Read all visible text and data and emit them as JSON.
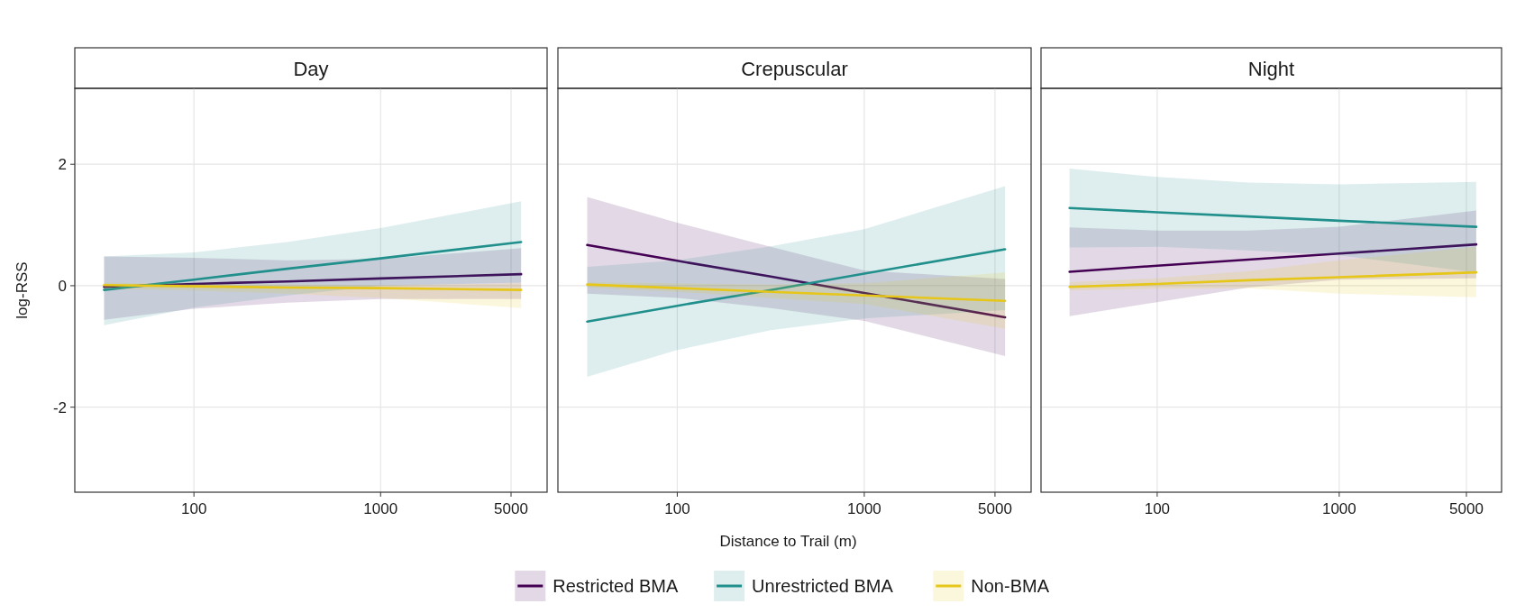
{
  "chart_data": [
    {
      "type": "line",
      "title": "Day",
      "ylabel": "log-RSS",
      "log": "x",
      "grid": true,
      "xlim": [
        23,
        7800
      ],
      "xticks": [
        100,
        1000,
        5000
      ],
      "ylim": [
        -3.4,
        3.25
      ],
      "yticks": [
        -2,
        0,
        2
      ],
      "series": [
        {
          "color": "#440154",
          "x": [
            33,
            100,
            316,
            1000,
            5660
          ],
          "values": [
            -0.02,
            0.03,
            0.07,
            0.12,
            0.19
          ],
          "lower": [
            -0.56,
            -0.38,
            -0.28,
            -0.22,
            -0.22
          ],
          "upper": [
            0.48,
            0.46,
            0.42,
            0.44,
            0.62
          ]
        },
        {
          "color": "#21908c",
          "x": [
            33,
            100,
            316,
            1000,
            5660
          ],
          "values": [
            -0.07,
            0.1,
            0.28,
            0.45,
            0.72
          ],
          "lower": [
            -0.65,
            -0.36,
            -0.16,
            0.0,
            0.05
          ],
          "upper": [
            0.48,
            0.55,
            0.72,
            0.95,
            1.39
          ]
        },
        {
          "color": "#e5c619",
          "x": [
            33,
            100,
            316,
            1000,
            5660
          ],
          "values": [
            0.01,
            -0.01,
            -0.03,
            -0.04,
            -0.07
          ],
          "lower": [
            -0.05,
            -0.08,
            -0.13,
            -0.2,
            -0.37
          ],
          "upper": [
            0.05,
            0.03,
            0.02,
            0.01,
            0.04
          ]
        }
      ]
    },
    {
      "type": "line",
      "title": "Crepuscular",
      "xlabel": "Distance to Trail (m)",
      "log": "x",
      "grid": true,
      "legend": "bottom",
      "tick_labels": "x",
      "xlim": [
        23,
        7800
      ],
      "xticks": [
        100,
        1000,
        5000
      ],
      "ylim": [
        -3.4,
        3.25
      ],
      "yticks": [
        -2,
        0,
        2
      ],
      "series": [
        {
          "name": "Restricted BMA",
          "color": "#440154",
          "x": [
            33,
            100,
            316,
            1000,
            5660
          ],
          "values": [
            0.67,
            0.41,
            0.15,
            -0.12,
            -0.52
          ],
          "lower": [
            -0.13,
            -0.2,
            -0.37,
            -0.58,
            -1.16
          ],
          "upper": [
            1.46,
            1.04,
            0.64,
            0.25,
            0.11
          ]
        },
        {
          "name": "Unrestricted BMA",
          "color": "#21908c",
          "x": [
            33,
            100,
            316,
            1000,
            5660
          ],
          "values": [
            -0.59,
            -0.33,
            -0.07,
            0.2,
            0.6
          ],
          "lower": [
            -1.5,
            -1.06,
            -0.73,
            -0.54,
            -0.4
          ],
          "upper": [
            0.31,
            0.42,
            0.65,
            0.93,
            1.64
          ]
        },
        {
          "name": "Non-BMA",
          "color": "#e5c619",
          "x": [
            33,
            100,
            316,
            1000,
            5660
          ],
          "values": [
            0.02,
            -0.04,
            -0.1,
            -0.16,
            -0.25
          ],
          "lower": [
            -0.03,
            -0.1,
            -0.2,
            -0.3,
            -0.71
          ],
          "upper": [
            0.06,
            0.04,
            0.02,
            0.04,
            0.22
          ]
        }
      ]
    },
    {
      "type": "line",
      "title": "Night",
      "log": "x",
      "grid": true,
      "tick_labels": "x",
      "xlim": [
        23,
        7800
      ],
      "xticks": [
        100,
        1000,
        5000
      ],
      "ylim": [
        -3.4,
        3.25
      ],
      "yticks": [
        -2,
        0,
        2
      ],
      "series": [
        {
          "color": "#440154",
          "x": [
            33,
            100,
            316,
            1000,
            5660
          ],
          "values": [
            0.23,
            0.33,
            0.43,
            0.53,
            0.68
          ],
          "lower": [
            -0.5,
            -0.27,
            -0.03,
            0.1,
            0.12
          ],
          "upper": [
            0.96,
            0.91,
            0.91,
            0.97,
            1.24
          ]
        },
        {
          "color": "#21908c",
          "x": [
            33,
            100,
            316,
            1000,
            5660
          ],
          "values": [
            1.28,
            1.21,
            1.14,
            1.07,
            0.97
          ],
          "lower": [
            0.63,
            0.64,
            0.58,
            0.5,
            0.22
          ],
          "upper": [
            1.93,
            1.79,
            1.7,
            1.67,
            1.71
          ]
        },
        {
          "color": "#e5c619",
          "x": [
            33,
            100,
            316,
            1000,
            5660
          ],
          "values": [
            -0.02,
            0.03,
            0.09,
            0.14,
            0.22
          ],
          "lower": [
            -0.08,
            -0.05,
            -0.04,
            -0.13,
            -0.19
          ],
          "upper": [
            0.06,
            0.12,
            0.24,
            0.42,
            0.64
          ]
        }
      ]
    }
  ]
}
